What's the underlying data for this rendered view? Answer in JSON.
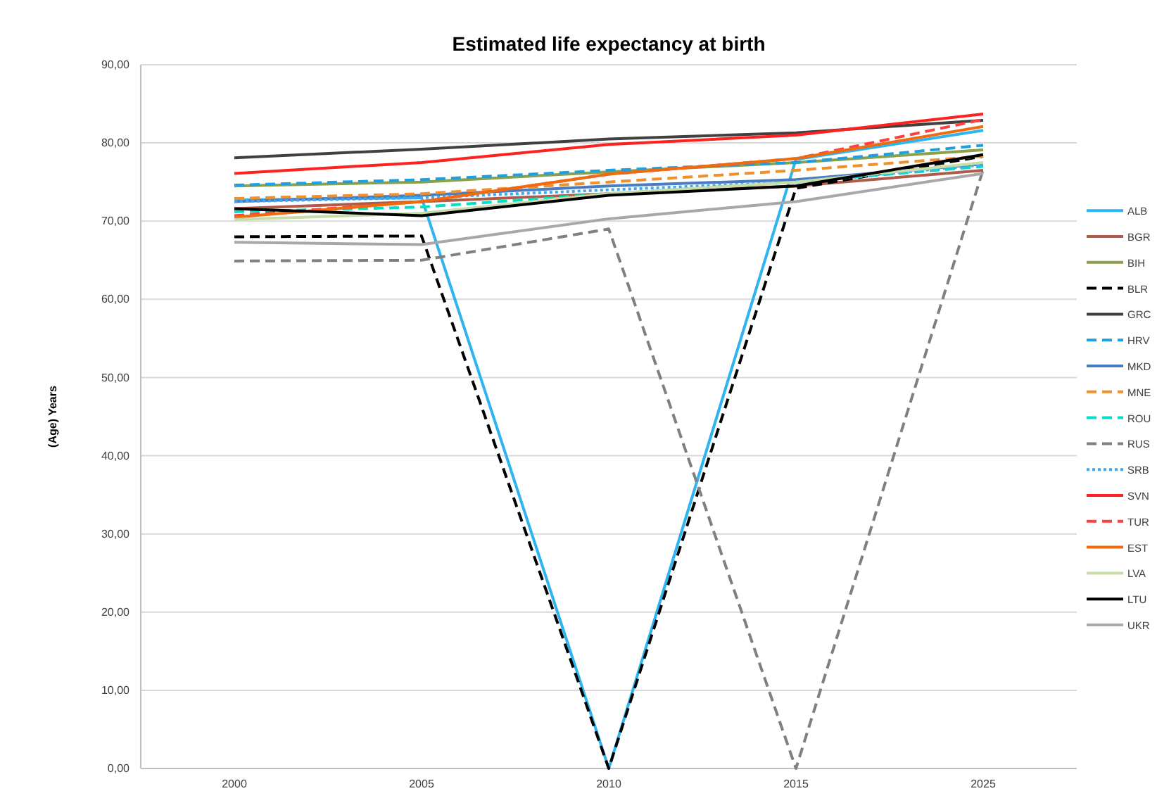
{
  "chart_data": {
    "type": "line",
    "title": "Estimated life expectancy at birth",
    "ylabel": "(Age) Years",
    "categories": [
      "2000",
      "2005",
      "2010",
      "2015",
      "2025"
    ],
    "ylim": [
      0,
      90
    ],
    "yticks": [
      {
        "value": 0,
        "label": "0,00"
      },
      {
        "value": 10,
        "label": "10,00"
      },
      {
        "value": 20,
        "label": "20,00"
      },
      {
        "value": 30,
        "label": "30,00"
      },
      {
        "value": 40,
        "label": "40,00"
      },
      {
        "value": 50,
        "label": "50,00"
      },
      {
        "value": 60,
        "label": "60,00"
      },
      {
        "value": 70,
        "label": "70,00"
      },
      {
        "value": 80,
        "label": "80,00"
      },
      {
        "value": 90,
        "label": "90,00"
      }
    ],
    "grid": "y",
    "legend": "right",
    "marker": "none",
    "series": [
      {
        "name": "ALB",
        "color": "#2eb4f0",
        "line_style": "solid",
        "values": [
          72.7,
          73,
          0,
          77.9,
          81.6
        ]
      },
      {
        "name": "BGR",
        "color": "#b05a4a",
        "line_style": "solid",
        "values": [
          71.6,
          72.5,
          73.5,
          74.5,
          76.5
        ]
      },
      {
        "name": "BIH",
        "color": "#8aa04a",
        "line_style": "solid",
        "values": [
          74.5,
          75,
          76.3,
          77.5,
          79.1
        ]
      },
      {
        "name": "BLR",
        "color": "#000000",
        "line_style": "dashed",
        "values": [
          68,
          68.1,
          0,
          74.2,
          78.3
        ]
      },
      {
        "name": "GRC",
        "color": "#404040",
        "line_style": "solid",
        "values": [
          78.1,
          79.2,
          80.5,
          81.3,
          82.9
        ]
      },
      {
        "name": "HRV",
        "color": "#1ea0e0",
        "line_style": "dashed",
        "values": [
          74.6,
          75.3,
          76.5,
          77.5,
          79.7
        ]
      },
      {
        "name": "MKD",
        "color": "#4a7cc4",
        "line_style": "solid",
        "values": [
          72.5,
          73.3,
          74.5,
          75.3,
          77.3
        ]
      },
      {
        "name": "MNE",
        "color": "#f0902a",
        "line_style": "dashed",
        "values": [
          72.9,
          73.5,
          75,
          76.5,
          78.3
        ]
      },
      {
        "name": "ROU",
        "color": "#00e0c8",
        "line_style": "dashed",
        "values": [
          71.2,
          71.8,
          73.5,
          75,
          77
        ]
      },
      {
        "name": "RUS",
        "color": "#808080",
        "line_style": "dashed",
        "values": [
          64.9,
          65,
          69,
          0,
          76.6
        ]
      },
      {
        "name": "SRB",
        "color": "#40a8f0",
        "line_style": "dotted",
        "values": [
          72.5,
          73,
          74,
          75,
          77.2
        ]
      },
      {
        "name": "SVN",
        "color": "#ff2020",
        "line_style": "solid",
        "values": [
          76.1,
          77.5,
          79.8,
          81,
          83.7
        ]
      },
      {
        "name": "TUR",
        "color": "#ff4040",
        "line_style": "dashed",
        "values": [
          70.7,
          72.5,
          76,
          78,
          83
        ]
      },
      {
        "name": "EST",
        "color": "#f06a10",
        "line_style": "solid",
        "values": [
          70.5,
          72.5,
          76,
          78,
          82.1
        ]
      },
      {
        "name": "LVA",
        "color": "#c8dca8",
        "line_style": "solid",
        "values": [
          70.2,
          71,
          73.5,
          75,
          77.5
        ]
      },
      {
        "name": "LTU",
        "color": "#000000",
        "line_style": "solid",
        "values": [
          71.6,
          70.7,
          73.3,
          74.5,
          78.5
        ]
      },
      {
        "name": "UKR",
        "color": "#a8a8a8",
        "line_style": "solid",
        "values": [
          67.3,
          67,
          70.3,
          72.5,
          76.1
        ]
      }
    ]
  }
}
